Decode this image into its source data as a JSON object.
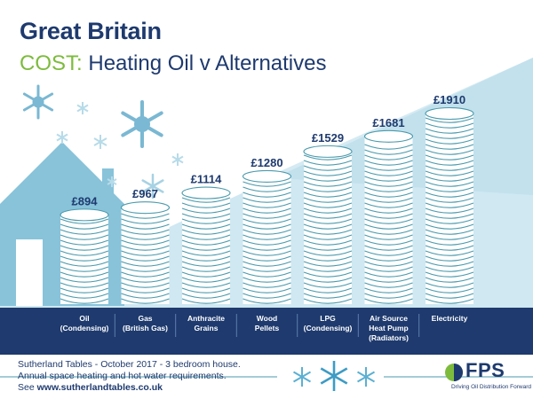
{
  "title": "Great Britain",
  "subtitle_prefix": "COST:",
  "subtitle_rest": " Heating Oil v Alternatives",
  "colors": {
    "navy": "#1e3a6e",
    "green": "#7dbb3d",
    "teal": "#4a9aad",
    "light_blue": "#c9e6f1",
    "pale_blue": "#e6f3f8"
  },
  "chart_data": {
    "type": "bar",
    "categories": [
      "Oil (Condensing)",
      "Gas (British Gas)",
      "Anthracite Grains",
      "Wood Pellets",
      "LPG (Condensing)",
      "Air Source Heat Pump (Radiators)",
      "Electricity"
    ],
    "category_lines": [
      [
        "Oil",
        "(Condensing)"
      ],
      [
        "Gas",
        "(British Gas)"
      ],
      [
        "Anthracite",
        "Grains"
      ],
      [
        "Wood",
        "Pellets"
      ],
      [
        "LPG",
        "(Condensing)"
      ],
      [
        "Air Source",
        "Heat Pump",
        "(Radiators)"
      ],
      [
        "Electricity"
      ]
    ],
    "values": [
      894,
      967,
      1114,
      1280,
      1529,
      1681,
      1910
    ],
    "value_labels": [
      "£894",
      "£967",
      "£1114",
      "£1280",
      "£1529",
      "£1681",
      "£1910"
    ],
    "title": "COST: Heating Oil v Alternatives",
    "ylabel": "",
    "xlabel": ""
  },
  "footer": {
    "source_line": "Sutherland Tables - October 2017 - 3 bedroom house.",
    "description_line": "Annual space heating and hot water requirements.",
    "see_prefix": "See ",
    "url": "www.sutherlandtables.co.uk"
  },
  "logo": {
    "wordmark": "FPS",
    "tagline": "Driving Oil Distribution Forward"
  }
}
